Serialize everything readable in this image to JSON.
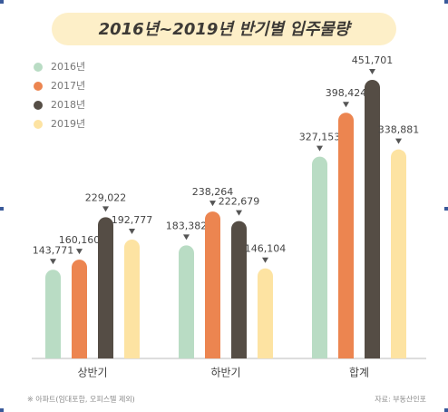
{
  "chart_data": {
    "type": "bar",
    "title": "2016년~2019년 반기별 입주물량",
    "categories": [
      "상반기",
      "하반기",
      "합계"
    ],
    "series": [
      {
        "name": "2016년",
        "color": "#b9dcc4",
        "values": [
          143771,
          183382,
          327153
        ],
        "value_labels": [
          "143,771",
          "183,382",
          "327,153"
        ]
      },
      {
        "name": "2017년",
        "color": "#ec8550",
        "values": [
          160160,
          238264,
          398424
        ],
        "value_labels": [
          "160,160",
          "238,264",
          "398,424"
        ]
      },
      {
        "name": "2018년",
        "color": "#554d45",
        "values": [
          229022,
          222679,
          451701
        ],
        "value_labels": [
          "229,022",
          "222,679",
          "451,701"
        ]
      },
      {
        "name": "2019년",
        "color": "#fde3a2",
        "values": [
          192777,
          146104,
          338881
        ],
        "value_labels": [
          "192,777",
          "146,104",
          "338,881"
        ]
      }
    ],
    "legend": "top-left",
    "footnote": "※ 아파트(임대포함, 오피스텔 제외)",
    "source": "자료: 부동산인포"
  }
}
